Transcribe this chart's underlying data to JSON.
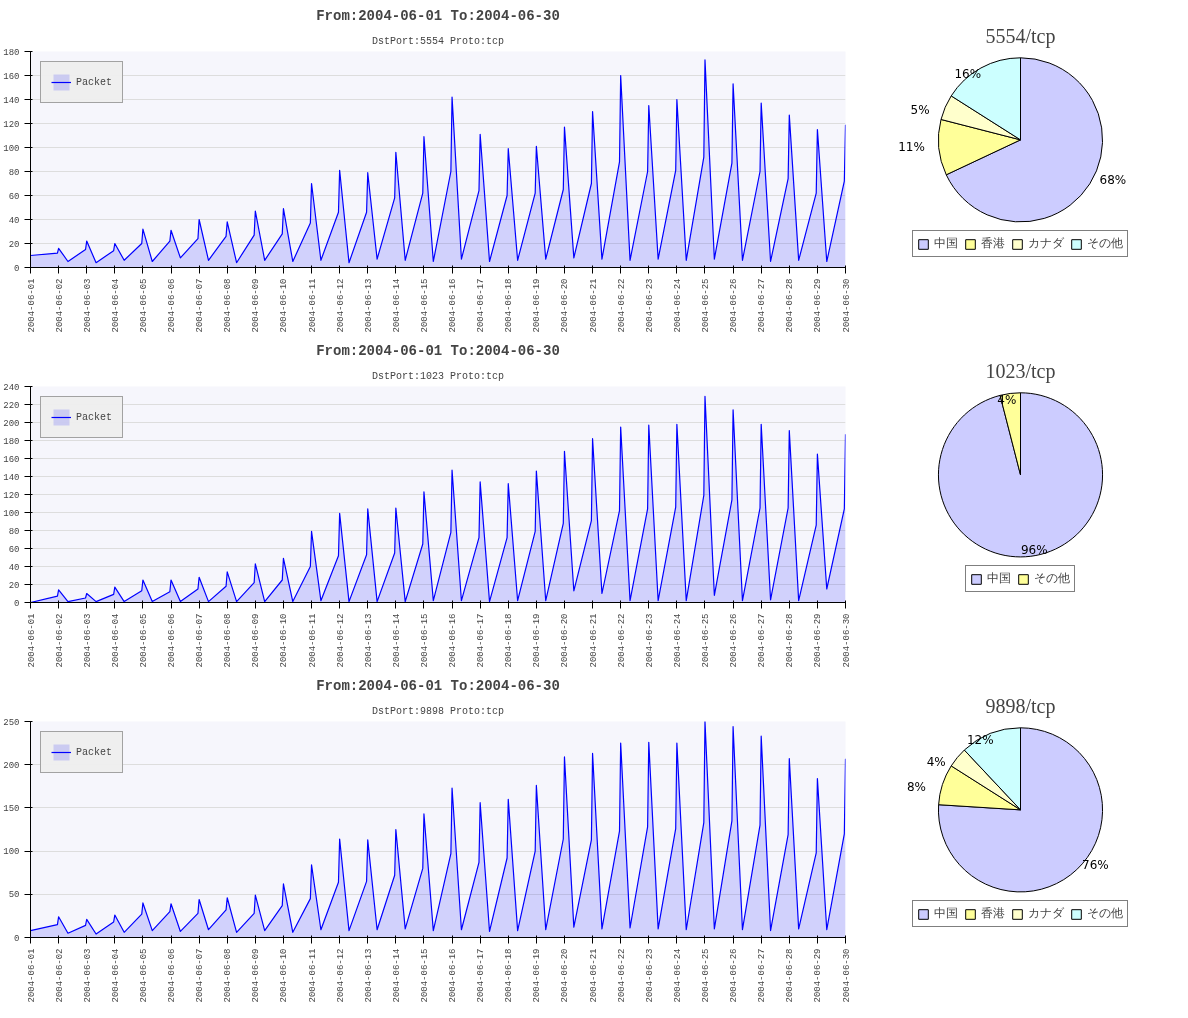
{
  "chart_data": [
    {
      "type": "area",
      "title": "From:2004-06-01 To:2004-06-30",
      "subtitle": "DstPort:5554 Proto:tcp",
      "xlim": [
        "2004-06-01",
        "2004-06-30"
      ],
      "xticks": [
        "2004-06-01",
        "2004-06-02",
        "2004-06-03",
        "2004-06-04",
        "2004-06-05",
        "2004-06-06",
        "2004-06-07",
        "2004-06-08",
        "2004-06-09",
        "2004-06-10",
        "2004-06-11",
        "2004-06-12",
        "2004-06-13",
        "2004-06-14",
        "2004-06-15",
        "2004-06-16",
        "2004-06-17",
        "2004-06-18",
        "2004-06-19",
        "2004-06-20",
        "2004-06-21",
        "2004-06-22",
        "2004-06-23",
        "2004-06-24",
        "2004-06-25",
        "2004-06-26",
        "2004-06-27",
        "2004-06-28",
        "2004-06-29",
        "2004-06-30"
      ],
      "ylim": [
        0,
        180
      ],
      "yticks": [
        0,
        20,
        40,
        60,
        80,
        100,
        120,
        140,
        160,
        180
      ],
      "grid": "y",
      "legend": "top left",
      "series": [
        {
          "name": "Packet",
          "color": "#0000ff",
          "x": [
            "2004-06-01T00:00",
            "2004-06-01T23:00",
            "2004-06-02T00:00",
            "2004-06-02T08:00",
            "2004-06-02T23:00",
            "2004-06-03T00:00",
            "2004-06-03T08:00",
            "2004-06-03T23:00",
            "2004-06-04T00:00",
            "2004-06-04T08:00",
            "2004-06-04T23:00",
            "2004-06-05T00:00",
            "2004-06-05T08:00",
            "2004-06-05T23:00",
            "2004-06-06T00:00",
            "2004-06-06T08:00",
            "2004-06-06T23:00",
            "2004-06-07T00:00",
            "2004-06-07T08:00",
            "2004-06-07T23:00",
            "2004-06-08T00:00",
            "2004-06-08T08:00",
            "2004-06-08T23:00",
            "2004-06-09T00:00",
            "2004-06-09T08:00",
            "2004-06-09T23:00",
            "2004-06-10T00:00",
            "2004-06-10T08:00",
            "2004-06-10T23:00",
            "2004-06-11T00:00",
            "2004-06-11T08:00",
            "2004-06-11T23:00",
            "2004-06-12T00:00",
            "2004-06-12T08:00",
            "2004-06-12T23:00",
            "2004-06-13T00:00",
            "2004-06-13T08:00",
            "2004-06-13T23:00",
            "2004-06-14T00:00",
            "2004-06-14T08:00",
            "2004-06-14T23:00",
            "2004-06-15T00:00",
            "2004-06-15T08:00",
            "2004-06-15T23:00",
            "2004-06-16T00:00",
            "2004-06-16T08:00",
            "2004-06-16T23:00",
            "2004-06-17T00:00",
            "2004-06-17T08:00",
            "2004-06-17T23:00",
            "2004-06-18T00:00",
            "2004-06-18T08:00",
            "2004-06-18T23:00",
            "2004-06-19T00:00",
            "2004-06-19T08:00",
            "2004-06-19T23:00",
            "2004-06-20T00:00",
            "2004-06-20T08:00",
            "2004-06-20T23:00",
            "2004-06-21T00:00",
            "2004-06-21T08:00",
            "2004-06-21T23:00",
            "2004-06-22T00:00",
            "2004-06-22T08:00",
            "2004-06-22T23:00",
            "2004-06-23T00:00",
            "2004-06-23T08:00",
            "2004-06-23T23:00",
            "2004-06-24T00:00",
            "2004-06-24T08:00",
            "2004-06-24T23:00",
            "2004-06-25T00:00",
            "2004-06-25T08:00",
            "2004-06-25T23:00",
            "2004-06-26T00:00",
            "2004-06-26T08:00",
            "2004-06-26T23:00",
            "2004-06-27T00:00",
            "2004-06-27T08:00",
            "2004-06-27T23:00",
            "2004-06-28T00:00",
            "2004-06-28T08:00",
            "2004-06-28T23:00",
            "2004-06-29T00:00",
            "2004-06-29T08:00",
            "2004-06-29T23:00",
            "2004-06-30T00:00"
          ],
          "values": [
            10,
            12,
            16,
            5,
            15,
            22,
            4,
            14,
            20,
            6,
            20,
            32,
            5,
            22,
            31,
            8,
            24,
            40,
            6,
            26,
            38,
            4,
            27,
            47,
            6,
            28,
            49,
            5,
            37,
            70,
            6,
            46,
            81,
            4,
            46,
            79,
            7,
            58,
            96,
            6,
            62,
            109,
            5,
            80,
            142,
            7,
            64,
            111,
            5,
            60,
            99,
            6,
            62,
            101,
            7,
            65,
            117,
            8,
            70,
            130,
            7,
            88,
            160,
            6,
            80,
            135,
            7,
            81,
            140,
            6,
            92,
            173,
            7,
            87,
            153,
            6,
            80,
            137,
            5,
            74,
            127,
            6,
            62,
            115,
            5,
            72,
            119
          ]
        }
      ]
    },
    {
      "type": "pie",
      "title": "5554/tcp",
      "categories": [
        "中国",
        "香港",
        "カナダ",
        "その他"
      ],
      "values": [
        68,
        11,
        5,
        16
      ],
      "colors": [
        "#ccccff",
        "#ffff99",
        "#ffffcc",
        "#ccffff"
      ],
      "value_labels": [
        "68%",
        "11%",
        "5%",
        "16%"
      ],
      "legend": "bottom"
    },
    {
      "type": "area",
      "title": "From:2004-06-01 To:2004-06-30",
      "subtitle": "DstPort:1023 Proto:tcp",
      "xlim": [
        "2004-06-01",
        "2004-06-30"
      ],
      "xticks": [
        "2004-06-01",
        "2004-06-02",
        "2004-06-03",
        "2004-06-04",
        "2004-06-05",
        "2004-06-06",
        "2004-06-07",
        "2004-06-08",
        "2004-06-09",
        "2004-06-10",
        "2004-06-11",
        "2004-06-12",
        "2004-06-13",
        "2004-06-14",
        "2004-06-15",
        "2004-06-16",
        "2004-06-17",
        "2004-06-18",
        "2004-06-19",
        "2004-06-20",
        "2004-06-21",
        "2004-06-22",
        "2004-06-23",
        "2004-06-24",
        "2004-06-25",
        "2004-06-26",
        "2004-06-27",
        "2004-06-28",
        "2004-06-29",
        "2004-06-30"
      ],
      "ylim": [
        0,
        240
      ],
      "yticks": [
        0,
        20,
        40,
        60,
        80,
        100,
        120,
        140,
        160,
        180,
        200,
        220,
        240
      ],
      "grid": "y",
      "legend": "top left",
      "series": [
        {
          "name": "Packet",
          "color": "#0000ff",
          "x": [
            "2004-06-01T00:00",
            "2004-06-01T23:00",
            "2004-06-02T00:00",
            "2004-06-02T08:00",
            "2004-06-02T23:00",
            "2004-06-03T00:00",
            "2004-06-03T08:00",
            "2004-06-03T23:00",
            "2004-06-04T00:00",
            "2004-06-04T08:00",
            "2004-06-04T23:00",
            "2004-06-05T00:00",
            "2004-06-05T08:00",
            "2004-06-05T23:00",
            "2004-06-06T00:00",
            "2004-06-06T08:00",
            "2004-06-06T23:00",
            "2004-06-07T00:00",
            "2004-06-07T08:00",
            "2004-06-07T23:00",
            "2004-06-08T00:00",
            "2004-06-08T08:00",
            "2004-06-08T23:00",
            "2004-06-09T00:00",
            "2004-06-09T08:00",
            "2004-06-09T23:00",
            "2004-06-10T00:00",
            "2004-06-10T08:00",
            "2004-06-10T23:00",
            "2004-06-11T00:00",
            "2004-06-11T08:00",
            "2004-06-11T23:00",
            "2004-06-12T00:00",
            "2004-06-12T08:00",
            "2004-06-12T23:00",
            "2004-06-13T00:00",
            "2004-06-13T08:00",
            "2004-06-13T23:00",
            "2004-06-14T00:00",
            "2004-06-14T08:00",
            "2004-06-14T23:00",
            "2004-06-15T00:00",
            "2004-06-15T08:00",
            "2004-06-15T23:00",
            "2004-06-16T00:00",
            "2004-06-16T08:00",
            "2004-06-16T23:00",
            "2004-06-17T00:00",
            "2004-06-17T08:00",
            "2004-06-17T23:00",
            "2004-06-18T00:00",
            "2004-06-18T08:00",
            "2004-06-18T23:00",
            "2004-06-19T00:00",
            "2004-06-19T08:00",
            "2004-06-19T23:00",
            "2004-06-20T00:00",
            "2004-06-20T08:00",
            "2004-06-20T23:00",
            "2004-06-21T00:00",
            "2004-06-21T08:00",
            "2004-06-21T23:00",
            "2004-06-22T00:00",
            "2004-06-22T08:00",
            "2004-06-22T23:00",
            "2004-06-23T00:00",
            "2004-06-23T08:00",
            "2004-06-23T23:00",
            "2004-06-24T00:00",
            "2004-06-24T08:00",
            "2004-06-24T23:00",
            "2004-06-25T00:00",
            "2004-06-25T08:00",
            "2004-06-25T23:00",
            "2004-06-26T00:00",
            "2004-06-26T08:00",
            "2004-06-26T23:00",
            "2004-06-27T00:00",
            "2004-06-27T08:00",
            "2004-06-27T23:00",
            "2004-06-28T00:00",
            "2004-06-28T08:00",
            "2004-06-28T23:00",
            "2004-06-29T00:00",
            "2004-06-29T08:00",
            "2004-06-29T23:00",
            "2004-06-30T00:00"
          ],
          "values": [
            0,
            7,
            14,
            1,
            5,
            10,
            1,
            9,
            17,
            1,
            13,
            25,
            1,
            12,
            25,
            1,
            15,
            28,
            1,
            18,
            34,
            1,
            22,
            43,
            1,
            25,
            49,
            1,
            40,
            79,
            2,
            52,
            99,
            1,
            53,
            104,
            1,
            55,
            105,
            1,
            65,
            123,
            2,
            78,
            147,
            2,
            72,
            134,
            1,
            72,
            132,
            2,
            79,
            146,
            2,
            88,
            168,
            13,
            91,
            182,
            10,
            102,
            195,
            2,
            104,
            197,
            2,
            106,
            198,
            2,
            119,
            229,
            8,
            114,
            214,
            2,
            105,
            198,
            3,
            105,
            191,
            2,
            86,
            165,
            15,
            104,
            187
          ]
        }
      ]
    },
    {
      "type": "pie",
      "title": "1023/tcp",
      "categories": [
        "中国",
        "その他"
      ],
      "values": [
        96,
        4
      ],
      "colors": [
        "#ccccff",
        "#ffff99"
      ],
      "value_labels": [
        "96%",
        "4%"
      ],
      "legend": "bottom"
    },
    {
      "type": "area",
      "title": "From:2004-06-01 To:2004-06-30",
      "subtitle": "DstPort:9898 Proto:tcp",
      "xlim": [
        "2004-06-01",
        "2004-06-30"
      ],
      "xticks": [
        "2004-06-01",
        "2004-06-02",
        "2004-06-03",
        "2004-06-04",
        "2004-06-05",
        "2004-06-06",
        "2004-06-07",
        "2004-06-08",
        "2004-06-09",
        "2004-06-10",
        "2004-06-11",
        "2004-06-12",
        "2004-06-13",
        "2004-06-14",
        "2004-06-15",
        "2004-06-16",
        "2004-06-17",
        "2004-06-18",
        "2004-06-19",
        "2004-06-20",
        "2004-06-21",
        "2004-06-22",
        "2004-06-23",
        "2004-06-24",
        "2004-06-25",
        "2004-06-26",
        "2004-06-27",
        "2004-06-28",
        "2004-06-29",
        "2004-06-30"
      ],
      "ylim": [
        0,
        250
      ],
      "yticks": [
        0,
        50,
        100,
        150,
        200,
        250
      ],
      "grid": "y",
      "legend": "top left",
      "series": [
        {
          "name": "Packet",
          "color": "#0000ff",
          "x": [
            "2004-06-01T00:00",
            "2004-06-01T23:00",
            "2004-06-02T00:00",
            "2004-06-02T08:00",
            "2004-06-02T23:00",
            "2004-06-03T00:00",
            "2004-06-03T08:00",
            "2004-06-03T23:00",
            "2004-06-04T00:00",
            "2004-06-04T08:00",
            "2004-06-04T23:00",
            "2004-06-05T00:00",
            "2004-06-05T08:00",
            "2004-06-05T23:00",
            "2004-06-06T00:00",
            "2004-06-06T08:00",
            "2004-06-06T23:00",
            "2004-06-07T00:00",
            "2004-06-07T08:00",
            "2004-06-07T23:00",
            "2004-06-08T00:00",
            "2004-06-08T08:00",
            "2004-06-08T23:00",
            "2004-06-09T00:00",
            "2004-06-09T08:00",
            "2004-06-09T23:00",
            "2004-06-10T00:00",
            "2004-06-10T08:00",
            "2004-06-10T23:00",
            "2004-06-11T00:00",
            "2004-06-11T08:00",
            "2004-06-11T23:00",
            "2004-06-12T00:00",
            "2004-06-12T08:00",
            "2004-06-12T23:00",
            "2004-06-13T00:00",
            "2004-06-13T08:00",
            "2004-06-13T23:00",
            "2004-06-14T00:00",
            "2004-06-14T08:00",
            "2004-06-14T23:00",
            "2004-06-15T00:00",
            "2004-06-15T08:00",
            "2004-06-15T23:00",
            "2004-06-16T00:00",
            "2004-06-16T08:00",
            "2004-06-16T23:00",
            "2004-06-17T00:00",
            "2004-06-17T08:00",
            "2004-06-17T23:00",
            "2004-06-18T00:00",
            "2004-06-18T08:00",
            "2004-06-18T23:00",
            "2004-06-19T00:00",
            "2004-06-19T08:00",
            "2004-06-19T23:00",
            "2004-06-20T00:00",
            "2004-06-20T08:00",
            "2004-06-20T23:00",
            "2004-06-21T00:00",
            "2004-06-21T08:00",
            "2004-06-21T23:00",
            "2004-06-22T00:00",
            "2004-06-22T08:00",
            "2004-06-22T23:00",
            "2004-06-23T00:00",
            "2004-06-23T08:00",
            "2004-06-23T23:00",
            "2004-06-24T00:00",
            "2004-06-24T08:00",
            "2004-06-24T23:00",
            "2004-06-25T00:00",
            "2004-06-25T08:00",
            "2004-06-25T23:00",
            "2004-06-26T00:00",
            "2004-06-26T08:00",
            "2004-06-26T23:00",
            "2004-06-27T00:00",
            "2004-06-27T08:00",
            "2004-06-27T23:00",
            "2004-06-28T00:00",
            "2004-06-28T08:00",
            "2004-06-28T23:00",
            "2004-06-29T00:00",
            "2004-06-29T08:00",
            "2004-06-29T23:00",
            "2004-06-30T00:00"
          ],
          "values": [
            8,
            15,
            24,
            5,
            14,
            21,
            4,
            18,
            26,
            6,
            27,
            40,
            8,
            30,
            39,
            7,
            28,
            44,
            9,
            32,
            46,
            6,
            28,
            49,
            8,
            37,
            62,
            6,
            45,
            84,
            9,
            64,
            114,
            8,
            65,
            113,
            9,
            72,
            125,
            10,
            80,
            143,
            8,
            97,
            173,
            9,
            87,
            156,
            7,
            92,
            160,
            8,
            100,
            176,
            9,
            114,
            209,
            12,
            113,
            213,
            10,
            123,
            225,
            11,
            128,
            226,
            10,
            126,
            225,
            9,
            133,
            250,
            10,
            135,
            244,
            9,
            130,
            233,
            8,
            119,
            207,
            10,
            98,
            184,
            9,
            120,
            207
          ]
        }
      ]
    },
    {
      "type": "pie",
      "title": "9898/tcp",
      "categories": [
        "中国",
        "香港",
        "カナダ",
        "その他"
      ],
      "values": [
        76,
        8,
        4,
        12
      ],
      "colors": [
        "#ccccff",
        "#ffff99",
        "#ffffcc",
        "#ccffff"
      ],
      "value_labels": [
        "76%",
        "8%",
        "4%",
        "12%"
      ],
      "legend": "bottom"
    }
  ]
}
